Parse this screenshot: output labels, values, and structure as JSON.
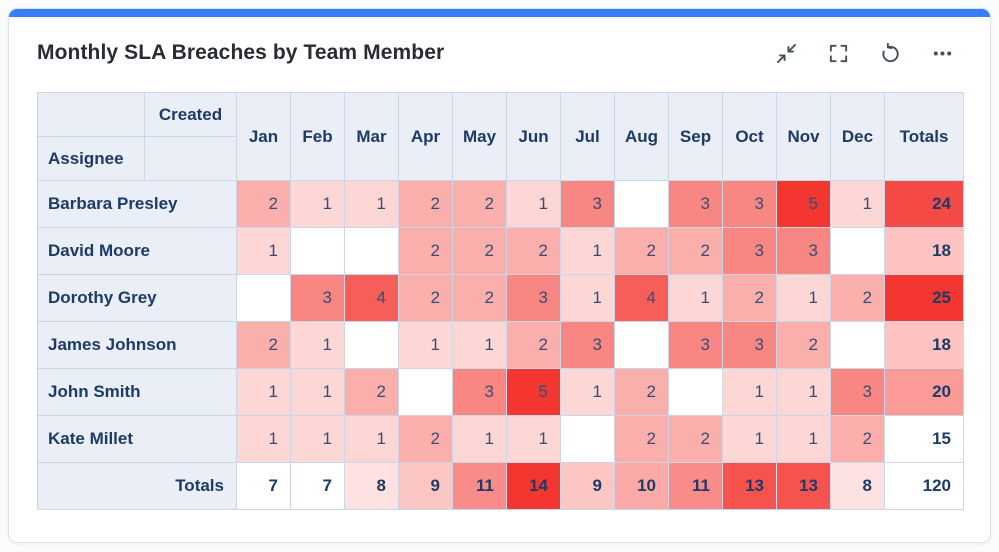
{
  "card": {
    "title": "Monthly SLA Breaches by Team Member",
    "accent_color": "#377df6",
    "toolbar_icons": [
      "minimize-icon",
      "fullscreen-icon",
      "refresh-icon",
      "ellipsis-icon"
    ]
  },
  "colors": {
    "header_bg": "#e9eef7",
    "header_text": "#1e3a66",
    "grid_line": "#cdd6e6",
    "heat_min": "#ffffff",
    "heat_max": "#f43630"
  },
  "chart_data": {
    "type": "heatmap",
    "title": "Monthly SLA Breaches by Team Member",
    "columns_dimension_label": "Created",
    "rows_dimension_label": "Assignee",
    "totals_label": "Totals",
    "categories": [
      "Jan",
      "Feb",
      "Mar",
      "Apr",
      "May",
      "Jun",
      "Jul",
      "Aug",
      "Sep",
      "Oct",
      "Nov",
      "Dec"
    ],
    "rows": [
      {
        "name": "Barbara Presley",
        "values": [
          2,
          1,
          1,
          2,
          2,
          1,
          3,
          null,
          3,
          3,
          5,
          1
        ],
        "total": 24
      },
      {
        "name": "David Moore",
        "values": [
          1,
          null,
          null,
          2,
          2,
          2,
          1,
          2,
          2,
          3,
          3,
          null
        ],
        "total": 18
      },
      {
        "name": "Dorothy Grey",
        "values": [
          null,
          3,
          4,
          2,
          2,
          3,
          1,
          4,
          1,
          2,
          1,
          2
        ],
        "total": 25
      },
      {
        "name": "James Johnson",
        "values": [
          2,
          1,
          null,
          1,
          1,
          2,
          3,
          null,
          3,
          3,
          2,
          null
        ],
        "total": 18
      },
      {
        "name": "John Smith",
        "values": [
          1,
          1,
          2,
          null,
          3,
          5,
          1,
          2,
          null,
          1,
          1,
          3
        ],
        "total": 20
      },
      {
        "name": "Kate Millet",
        "values": [
          1,
          1,
          1,
          2,
          1,
          1,
          null,
          2,
          2,
          1,
          1,
          2
        ],
        "total": 15
      }
    ],
    "column_totals": [
      7,
      7,
      8,
      9,
      11,
      14,
      9,
      10,
      11,
      13,
      13,
      8
    ],
    "grand_total": 120,
    "heat_scale": {
      "min_color": "#ffffff",
      "max_color": "#f43630"
    },
    "layout_hints": {
      "legend": "none",
      "blank_means_zero": true
    }
  }
}
